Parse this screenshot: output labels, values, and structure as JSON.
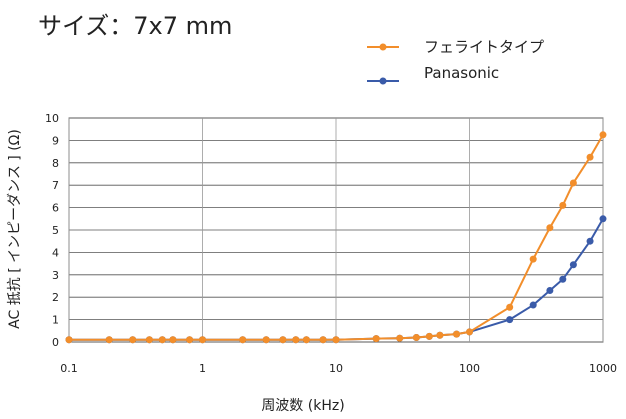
{
  "chart_data": {
    "type": "line",
    "title": "サイズ：7x7 mm",
    "xlabel": "周波数 (kHz)",
    "ylabel": "AC 抵抗 [ インピーダンス ] (Ω)",
    "xscale": "log",
    "xlim": [
      0.1,
      1000
    ],
    "ylim": [
      0,
      10
    ],
    "grid": true,
    "legend_position": "top-right",
    "x_ticks": [
      "0.1",
      "1",
      "10",
      "100",
      "1000"
    ],
    "y_ticks": [
      "0",
      "1",
      "2",
      "3",
      "4",
      "5",
      "6",
      "7",
      "8",
      "9",
      "10"
    ],
    "series": [
      {
        "name": "フェライトタイプ",
        "color": "#F28E2B",
        "points": [
          [
            0.1,
            0.1
          ],
          [
            0.2,
            0.1
          ],
          [
            0.3,
            0.1
          ],
          [
            0.4,
            0.1
          ],
          [
            0.5,
            0.1
          ],
          [
            0.6,
            0.1
          ],
          [
            0.8,
            0.1
          ],
          [
            1,
            0.1
          ],
          [
            2,
            0.1
          ],
          [
            3,
            0.1
          ],
          [
            4,
            0.1
          ],
          [
            5,
            0.1
          ],
          [
            6,
            0.1
          ],
          [
            8,
            0.1
          ],
          [
            10,
            0.1
          ],
          [
            20,
            0.15
          ],
          [
            30,
            0.17
          ],
          [
            40,
            0.2
          ],
          [
            50,
            0.25
          ],
          [
            60,
            0.3
          ],
          [
            80,
            0.35
          ],
          [
            100,
            0.45
          ],
          [
            200,
            1.55
          ],
          [
            300,
            3.7
          ],
          [
            400,
            5.1
          ],
          [
            500,
            6.1
          ],
          [
            600,
            7.1
          ],
          [
            800,
            8.25
          ],
          [
            1000,
            9.25
          ]
        ]
      },
      {
        "name": "Panasonic",
        "color": "#3A5BA9",
        "points": [
          [
            0.1,
            0.1
          ],
          [
            0.2,
            0.1
          ],
          [
            0.3,
            0.1
          ],
          [
            0.4,
            0.1
          ],
          [
            0.5,
            0.1
          ],
          [
            0.6,
            0.1
          ],
          [
            0.8,
            0.1
          ],
          [
            1,
            0.1
          ],
          [
            2,
            0.1
          ],
          [
            3,
            0.1
          ],
          [
            4,
            0.1
          ],
          [
            5,
            0.1
          ],
          [
            6,
            0.1
          ],
          [
            8,
            0.1
          ],
          [
            10,
            0.1
          ],
          [
            20,
            0.15
          ],
          [
            30,
            0.17
          ],
          [
            40,
            0.2
          ],
          [
            50,
            0.25
          ],
          [
            60,
            0.3
          ],
          [
            80,
            0.35
          ],
          [
            100,
            0.45
          ],
          [
            200,
            1.0
          ],
          [
            300,
            1.65
          ],
          [
            400,
            2.3
          ],
          [
            500,
            2.8
          ],
          [
            600,
            3.45
          ],
          [
            800,
            4.5
          ],
          [
            1000,
            5.5
          ]
        ]
      }
    ]
  }
}
